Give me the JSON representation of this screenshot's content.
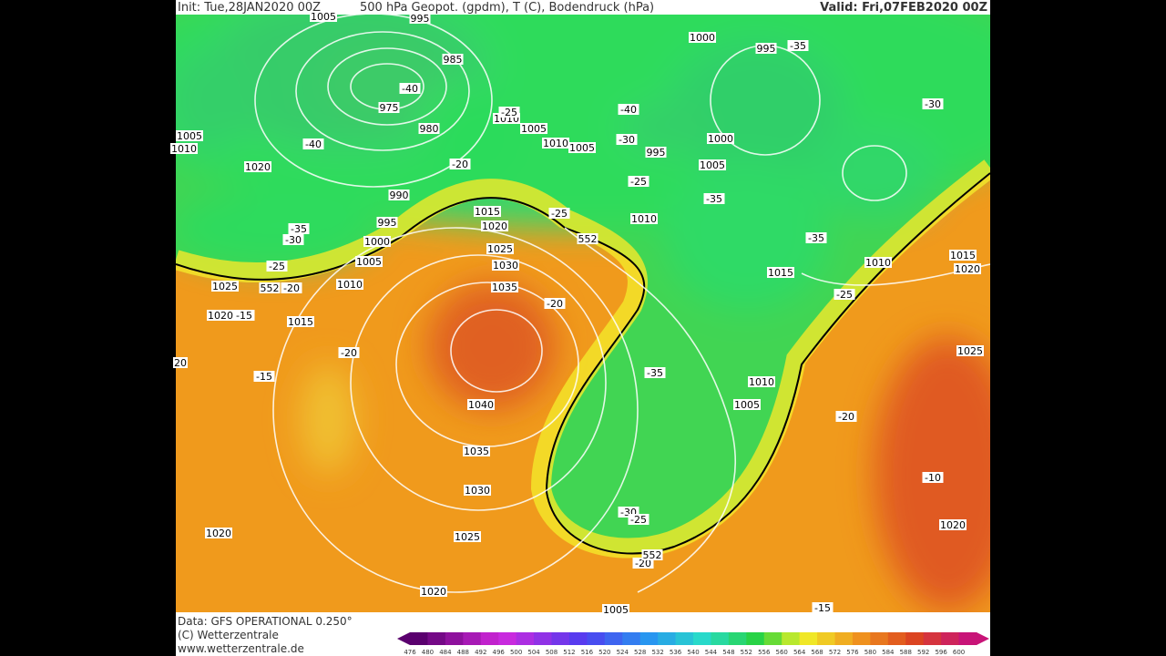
{
  "header": {
    "init": "Init: Tue,28JAN2020 00Z",
    "title": "500 hPa Geopot. (gpdm), T (C), Bodendruck (hPa)",
    "valid": "Valid: Fri,07FEB2020 00Z"
  },
  "footer": {
    "line1": "Data: GFS OPERATIONAL 0.250°",
    "line2": "(C) Wetterzentrale",
    "line3": "www.wetterzentrale.de"
  },
  "colorbar": {
    "ticks": [
      "476",
      "480",
      "484",
      "488",
      "492",
      "496",
      "500",
      "504",
      "508",
      "512",
      "516",
      "520",
      "524",
      "528",
      "532",
      "536",
      "540",
      "544",
      "548",
      "552",
      "556",
      "560",
      "564",
      "568",
      "572",
      "576",
      "580",
      "584",
      "588",
      "592",
      "596",
      "600"
    ]
  },
  "map_labels": [
    "1005",
    "995",
    "985",
    "975",
    "-40",
    "980",
    "-40",
    "1020",
    "-20",
    "990",
    "995",
    "1000",
    "1005",
    "-35",
    "-30",
    "-25",
    "1025",
    "552",
    "-20",
    "1010",
    "1020",
    "-15",
    "1015",
    "1015",
    "1020",
    "1025",
    "1030",
    "1035",
    "-20",
    "-25",
    "552",
    "1010",
    "1005",
    "1010",
    "1005",
    "1000",
    "995",
    "-35",
    "-40",
    "-30",
    "995",
    "1000",
    "1005",
    "-25",
    "-35",
    "1010",
    "-35",
    "1015",
    "1010",
    "1015",
    "1020",
    "-25",
    "-30",
    "1005",
    "1010",
    "-20",
    "-15",
    "20",
    "1040",
    "-35",
    "1010",
    "1005",
    "-20",
    "1035",
    "1030",
    "-10",
    "1025",
    "-30",
    "-25",
    "1025",
    "1020",
    "-20",
    "552",
    "1020",
    "1020",
    "1005",
    "-15",
    "-25"
  ]
}
